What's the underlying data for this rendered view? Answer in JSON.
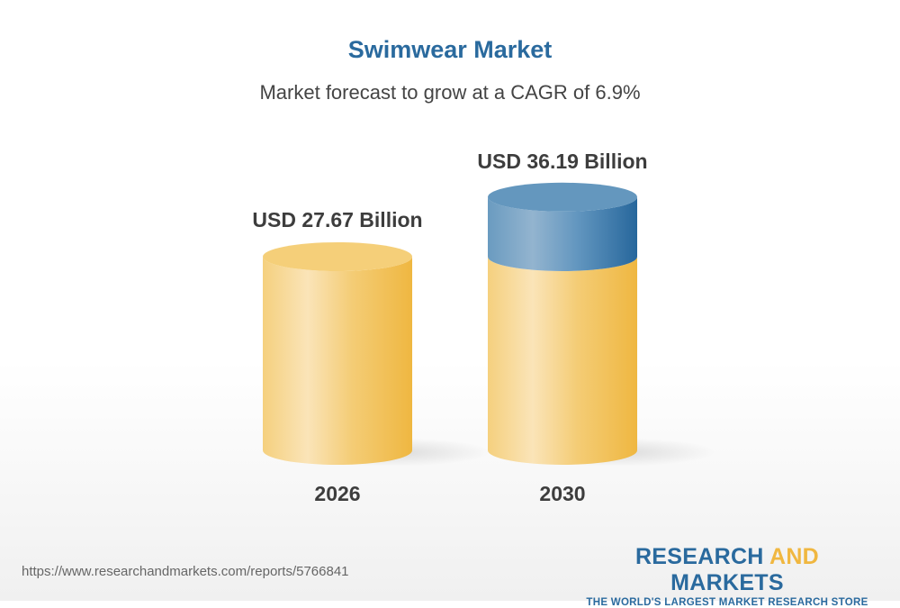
{
  "chart_data": {
    "type": "bar",
    "title": "Swimwear Market",
    "subtitle": "Market forecast to grow at a CAGR of 6.9%",
    "categories": [
      "2026",
      "2030"
    ],
    "values": [
      27.67,
      36.19
    ],
    "data_labels": [
      "USD 27.67 Billion",
      "USD 36.19 Billion"
    ],
    "unit": "USD Billion",
    "style": "3D cylinders; 2030 growth portion highlighted",
    "colors": {
      "base": "#f3c96b",
      "growth": "#2a6a9e"
    },
    "grid": false
  },
  "footer": {
    "url": "https://www.researchandmarkets.com/reports/5766841",
    "logo_part1": "RESEARCH ",
    "logo_part2": "AND",
    "logo_part3": " MARKETS",
    "logo_tagline": "THE WORLD'S LARGEST MARKET RESEARCH STORE"
  }
}
